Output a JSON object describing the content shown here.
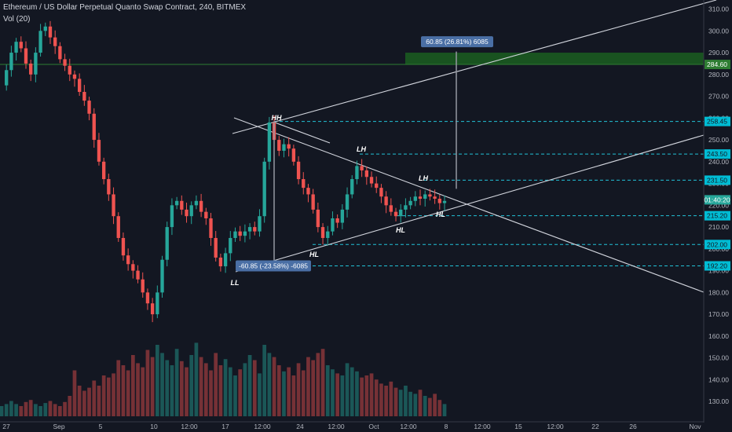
{
  "header": {
    "symbol_line": "Ethereum / US Dollar Perpetual Quanto Swap Contract, 240, BITMEX",
    "volume_line": "Vol (20)"
  },
  "colors": {
    "background": "#131722",
    "up": "#26a69a",
    "down": "#ef5350",
    "level_line": "#22c1d6",
    "level_badge": "#00bcd4",
    "trend_line": "#d1d4dc",
    "green_zone": "#1b5e20",
    "green_line": "#2e7d32",
    "price_badge": "#26a69a",
    "measure_badge": "#4a6fa5"
  },
  "chart_data": {
    "type": "candlestick",
    "y_axis": {
      "ticks": [
        310,
        300,
        290,
        280,
        270,
        260,
        250,
        240,
        230,
        220,
        210,
        200,
        190,
        180,
        170,
        160,
        150,
        140,
        130
      ],
      "ylim": [
        125,
        312
      ],
      "tick_labels": [
        "310.00",
        "300.00",
        "290.00",
        "280.00",
        "270.00",
        "260.00",
        "250.00",
        "240.00",
        "230.00",
        "220.00",
        "210.00",
        "200.00",
        "190.00",
        "180.00",
        "170.00",
        "160.00",
        "150.00",
        "140.00",
        "130.00"
      ]
    },
    "x_axis": {
      "tick_labels": [
        "27",
        "Sep",
        "5",
        "10",
        "12:00",
        "17",
        "12:00",
        "24",
        "12:00",
        "Oct",
        "12:00",
        "8",
        "12:00",
        "15",
        "12:00",
        "22",
        "26",
        "Nov"
      ]
    },
    "price_path": [
      [
        0,
        275
      ],
      [
        1,
        282
      ],
      [
        2,
        290
      ],
      [
        3,
        295
      ],
      [
        4,
        292
      ],
      [
        5,
        285
      ],
      [
        6,
        280
      ],
      [
        7,
        290
      ],
      [
        8,
        300
      ],
      [
        9,
        302
      ],
      [
        10,
        297
      ],
      [
        11,
        293
      ],
      [
        12,
        287
      ],
      [
        13,
        284
      ],
      [
        14,
        280
      ],
      [
        15,
        278
      ],
      [
        16,
        272
      ],
      [
        17,
        268
      ],
      [
        18,
        262
      ],
      [
        19,
        250
      ],
      [
        20,
        240
      ],
      [
        21,
        232
      ],
      [
        22,
        225
      ],
      [
        23,
        215
      ],
      [
        24,
        205
      ],
      [
        25,
        197
      ],
      [
        26,
        193
      ],
      [
        27,
        190
      ],
      [
        28,
        186
      ],
      [
        29,
        180
      ],
      [
        30,
        175
      ],
      [
        31,
        170
      ],
      [
        32,
        180
      ],
      [
        33,
        195
      ],
      [
        34,
        210
      ],
      [
        35,
        220
      ],
      [
        36,
        222
      ],
      [
        37,
        218
      ],
      [
        38,
        215
      ],
      [
        39,
        220
      ],
      [
        40,
        222
      ],
      [
        41,
        217
      ],
      [
        42,
        214
      ],
      [
        43,
        205
      ],
      [
        44,
        196
      ],
      [
        45,
        192
      ],
      [
        46,
        198
      ],
      [
        47,
        205
      ],
      [
        48,
        208
      ],
      [
        49,
        206
      ],
      [
        50,
        208
      ],
      [
        51,
        210
      ],
      [
        52,
        208
      ],
      [
        53,
        215
      ],
      [
        54,
        240
      ],
      [
        55,
        258
      ],
      [
        56,
        250
      ],
      [
        57,
        245
      ],
      [
        58,
        248
      ],
      [
        59,
        246
      ],
      [
        60,
        240
      ],
      [
        61,
        232
      ],
      [
        62,
        228
      ],
      [
        63,
        225
      ],
      [
        64,
        218
      ],
      [
        65,
        210
      ],
      [
        66,
        205
      ],
      [
        67,
        208
      ],
      [
        68,
        214
      ],
      [
        69,
        212
      ],
      [
        70,
        218
      ],
      [
        71,
        225
      ],
      [
        72,
        232
      ],
      [
        73,
        238
      ],
      [
        74,
        236
      ],
      [
        75,
        233
      ],
      [
        76,
        230
      ],
      [
        77,
        228
      ],
      [
        78,
        224
      ],
      [
        79,
        220
      ],
      [
        80,
        217
      ],
      [
        81,
        215
      ],
      [
        82,
        218
      ],
      [
        83,
        220
      ],
      [
        84,
        222
      ],
      [
        85,
        224
      ],
      [
        86,
        223
      ],
      [
        87,
        225
      ],
      [
        88,
        224
      ],
      [
        89,
        223
      ],
      [
        90,
        221
      ],
      [
        91,
        222
      ]
    ],
    "volume_levels": [
      0.1,
      0.12,
      0.15,
      0.12,
      0.1,
      0.14,
      0.16,
      0.12,
      0.1,
      0.13,
      0.15,
      0.12,
      0.1,
      0.14,
      0.2,
      0.45,
      0.3,
      0.25,
      0.28,
      0.35,
      0.3,
      0.4,
      0.38,
      0.42,
      0.55,
      0.5,
      0.45,
      0.6,
      0.52,
      0.48,
      0.65,
      0.58,
      0.7,
      0.62,
      0.55,
      0.5,
      0.66,
      0.54,
      0.48,
      0.6,
      0.72,
      0.58,
      0.52,
      0.45,
      0.62,
      0.5,
      0.56,
      0.48,
      0.4,
      0.46,
      0.52,
      0.6,
      0.55,
      0.42,
      0.7,
      0.62,
      0.58,
      0.5,
      0.44,
      0.48,
      0.4,
      0.52,
      0.45,
      0.58,
      0.55,
      0.62,
      0.66,
      0.5,
      0.46,
      0.42,
      0.4,
      0.52,
      0.48,
      0.44,
      0.38,
      0.4,
      0.42,
      0.36,
      0.32,
      0.3,
      0.34,
      0.28,
      0.26,
      0.3,
      0.24,
      0.22,
      0.26,
      0.2,
      0.18,
      0.22,
      0.16,
      0.12
    ],
    "volume_axis": {
      "ylim": [
        0,
        1
      ]
    },
    "levels": [
      {
        "value": 258.45,
        "label": "258.45"
      },
      {
        "value": 243.5,
        "label": "243.50"
      },
      {
        "value": 231.5,
        "label": "231.50"
      },
      {
        "value": 215.2,
        "label": "215.20"
      },
      {
        "value": 202.0,
        "label": "202.00"
      },
      {
        "value": 192.2,
        "label": "192.20"
      }
    ],
    "current_price": {
      "value": 222.5,
      "label": "01:40:20"
    },
    "green_zone": {
      "low": 284.6,
      "high": 290.0,
      "label": "284.60"
    },
    "green_line": 284.6,
    "swing_labels": [
      {
        "text": "HH",
        "i": 55,
        "value": 258.45,
        "pos": "above"
      },
      {
        "text": "LH",
        "i": 73,
        "value": 243.5,
        "pos": "above"
      },
      {
        "text": "LH",
        "i": 86,
        "value": 231.5,
        "pos": "above"
      },
      {
        "text": "LL",
        "i": 46,
        "value": 192.2,
        "pos": "below"
      },
      {
        "text": "HL",
        "i": 63,
        "value": 202.0,
        "pos": "below"
      },
      {
        "text": "HL",
        "i": 81,
        "value": 215.2,
        "pos": "below"
      },
      {
        "text": "HL",
        "i": 89,
        "value": 218.0,
        "pos": "below"
      }
    ],
    "measure_down": "-60.85 (-23.58%) -6085",
    "measure_up": "60.85 (26.81%) 6085"
  }
}
